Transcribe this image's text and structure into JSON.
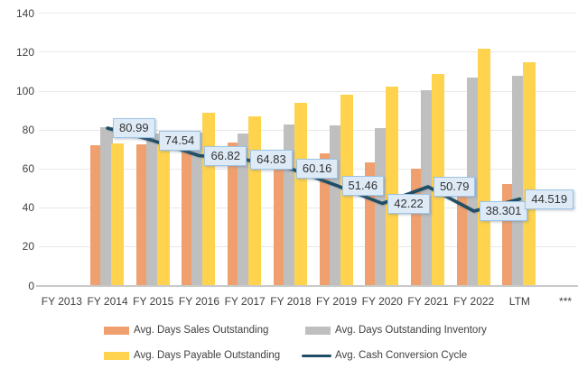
{
  "chart": {
    "background": "#FFFFFF",
    "colors": {
      "dso_bar": "#F0A06E",
      "dio_bar": "#BFBFBF",
      "dpo_bar": "#FFD34D",
      "ccc_line": "#1F4E66",
      "label_box_fill": "#DEEBF7",
      "label_box_border": "#9DC3E6",
      "gridline": "#E8E8E8",
      "axis_text": "#404040"
    },
    "y_axis": {
      "min": 0,
      "max": 140,
      "step": 20,
      "ticks": [
        "0",
        "20",
        "40",
        "60",
        "80",
        "100",
        "120",
        "140"
      ]
    },
    "legend": [
      {
        "series": 0,
        "marker": "rect"
      },
      {
        "series": 1,
        "marker": "rect"
      },
      {
        "series": 2,
        "marker": "rect"
      },
      {
        "series": 3,
        "marker": "line"
      }
    ]
  },
  "chart_data": {
    "type": "bar",
    "subtype": "combo bar + line",
    "title": "",
    "xlabel": "",
    "ylabel": "",
    "ylim": [
      0,
      140
    ],
    "grid": true,
    "legend_position": "bottom",
    "categories": [
      "FY 2013",
      "FY 2014",
      "FY 2015",
      "FY 2016",
      "FY 2017",
      "FY 2018",
      "FY 2019",
      "FY 2020",
      "FY 2021",
      "FY 2022",
      "LTM",
      "***"
    ],
    "series": [
      {
        "id": "dso",
        "name": "Avg. Days Sales Outstanding",
        "type": "bar",
        "color": "#F0A06E",
        "values": [
          null,
          72,
          72.5,
          71.5,
          73.5,
          68.5,
          68,
          63.5,
          60,
          52.5,
          52,
          null
        ]
      },
      {
        "id": "dio",
        "name": "Avg. Days Outstanding Inventory",
        "type": "bar",
        "color": "#BFBFBF",
        "values": [
          null,
          81.5,
          78,
          78.5,
          78,
          83,
          82.5,
          81,
          100.5,
          107,
          108,
          null
        ]
      },
      {
        "id": "dpo",
        "name": "Avg. Days Payable Outstanding",
        "type": "bar",
        "color": "#FFD34D",
        "values": [
          null,
          73,
          72.5,
          89,
          87,
          94,
          98,
          102.5,
          109,
          122,
          115,
          null
        ]
      },
      {
        "id": "ccc",
        "name": "Avg. Cash Conversion Cycle",
        "type": "line",
        "color": "#1F4E66",
        "values": [
          null,
          80.99,
          74.54,
          66.82,
          64.83,
          60.16,
          51.46,
          42.22,
          50.79,
          38.301,
          44.519,
          null
        ],
        "labels": [
          null,
          "80.99",
          "74.54",
          "66.82",
          "64.83",
          "60.16",
          "51.46",
          "42.22",
          "50.79",
          "38.301",
          "44.519",
          null
        ]
      }
    ]
  }
}
